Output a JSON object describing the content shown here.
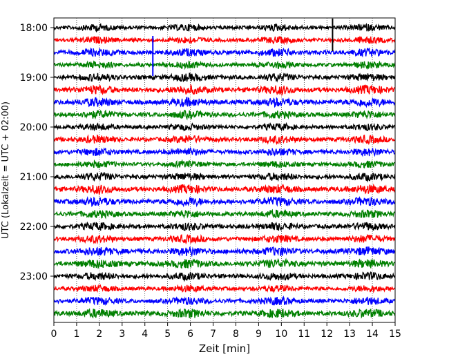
{
  "chart_data": {
    "type": "line",
    "xlabel": "Zeit  [min]",
    "ylabel": "UTC (Lokalzeit = UTC + 02:00)",
    "xlim": [
      0,
      15
    ],
    "x_ticks": [
      "0",
      "1",
      "2",
      "3",
      "4",
      "5",
      "6",
      "7",
      "8",
      "9",
      "10",
      "11",
      "12",
      "13",
      "14",
      "15"
    ],
    "y_ticks": [
      "18:00",
      "19:00",
      "20:00",
      "21:00",
      "22:00",
      "23:00"
    ],
    "grid": "vertical dotted",
    "colors": [
      "#000000",
      "#ff0000",
      "#0000ff",
      "#008000"
    ],
    "series": [
      {
        "start": "18:00",
        "color": "#000000",
        "amp": 0.35
      },
      {
        "start": "18:15",
        "color": "#ff0000",
        "amp": 0.35
      },
      {
        "start": "18:30",
        "color": "#0000ff",
        "amp": 0.4
      },
      {
        "start": "18:45",
        "color": "#008000",
        "amp": 0.35
      },
      {
        "start": "19:00",
        "color": "#000000",
        "amp": 0.4
      },
      {
        "start": "19:15",
        "color": "#ff0000",
        "amp": 0.45
      },
      {
        "start": "19:30",
        "color": "#0000ff",
        "amp": 0.45
      },
      {
        "start": "19:45",
        "color": "#008000",
        "amp": 0.4
      },
      {
        "start": "20:00",
        "color": "#000000",
        "amp": 0.35
      },
      {
        "start": "20:15",
        "color": "#ff0000",
        "amp": 0.4
      },
      {
        "start": "20:30",
        "color": "#0000ff",
        "amp": 0.4
      },
      {
        "start": "20:45",
        "color": "#008000",
        "amp": 0.35
      },
      {
        "start": "21:00",
        "color": "#000000",
        "amp": 0.4
      },
      {
        "start": "21:15",
        "color": "#ff0000",
        "amp": 0.45
      },
      {
        "start": "21:30",
        "color": "#0000ff",
        "amp": 0.45
      },
      {
        "start": "21:45",
        "color": "#008000",
        "amp": 0.4
      },
      {
        "start": "22:00",
        "color": "#000000",
        "amp": 0.4
      },
      {
        "start": "22:15",
        "color": "#ff0000",
        "amp": 0.4
      },
      {
        "start": "22:30",
        "color": "#0000ff",
        "amp": 0.45
      },
      {
        "start": "22:45",
        "color": "#008000",
        "amp": 0.45
      },
      {
        "start": "23:00",
        "color": "#000000",
        "amp": 0.4
      },
      {
        "start": "23:15",
        "color": "#ff0000",
        "amp": 0.35
      },
      {
        "start": "23:30",
        "color": "#0000ff",
        "amp": 0.4
      },
      {
        "start": "23:45",
        "color": "#008000",
        "amp": 0.45
      }
    ],
    "spikes": [
      {
        "start": "18:30",
        "x_min": 4.35,
        "color": "#0000ff",
        "up_rows": 2.0,
        "down_rows": 2.0
      },
      {
        "start": "18:00",
        "x_min": 12.25,
        "color": "#000000",
        "up_rows": 0.8,
        "down_rows": 2.0
      }
    ]
  }
}
